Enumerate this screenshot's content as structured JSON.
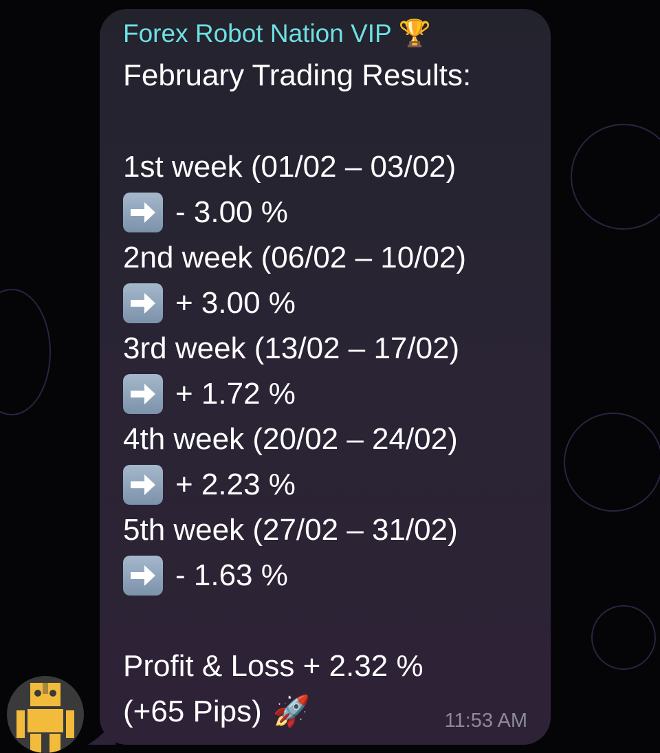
{
  "message": {
    "sender": "Forex Robot Nation VIP",
    "sender_emoji": "🏆",
    "title": "February Trading Results:",
    "weeks": [
      {
        "label": "1st week (01/02 – 03/02)",
        "result": "- 3.00 %"
      },
      {
        "label": "2nd week (06/02 – 10/02)",
        "result": "+ 3.00 %"
      },
      {
        "label": "3rd week (13/02 – 17/02)",
        "result": "+ 1.72 %"
      },
      {
        "label": "4th week (20/02 – 24/02)",
        "result": "+ 2.23 %"
      },
      {
        "label": "5th week (27/02 – 31/02)",
        "result": "- 1.63 %"
      }
    ],
    "arrow_icon": "right-arrow-emoji",
    "summary": "Profit & Loss + 2.32 %",
    "pips": "(+65 Pips)",
    "pips_emoji": "🚀",
    "time": "11:53 AM"
  },
  "colors": {
    "sender": "#6ee0e4",
    "bubble": "#2a2434",
    "background": "#050508"
  }
}
